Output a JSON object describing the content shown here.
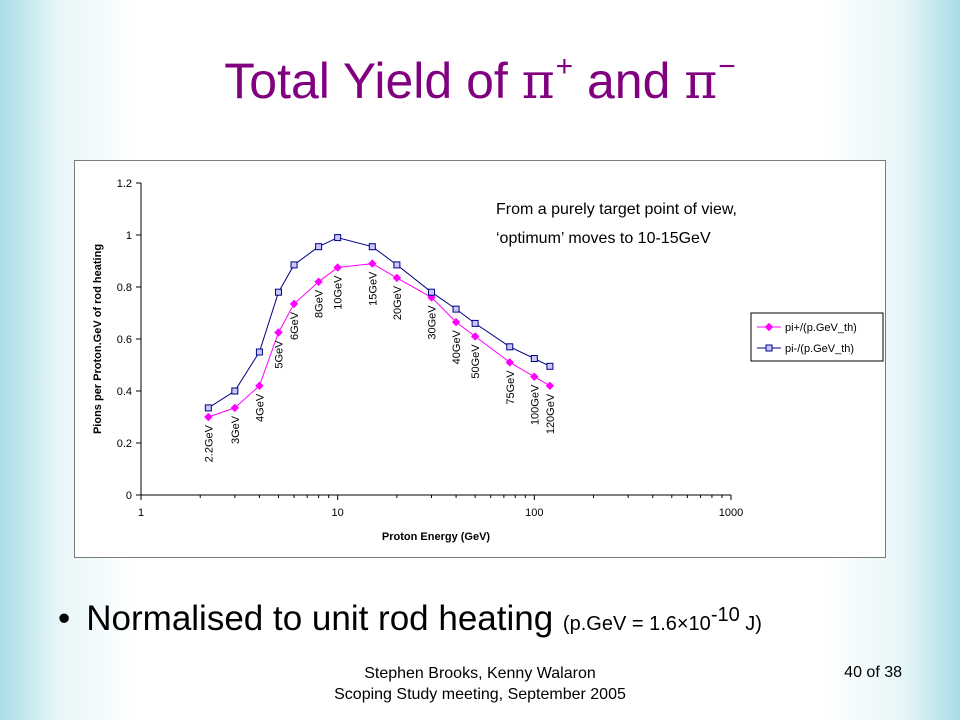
{
  "slide": {
    "title_text": "Total Yield of ",
    "title_pi1": "π",
    "title_sup1": "+",
    "title_and": " and ",
    "title_pi2": "π",
    "title_sup2": "−",
    "bullet_dot": "•",
    "bullet_main": "Normalised to unit rod heating ",
    "bullet_small_pre": "(p.GeV = 1.6×10",
    "bullet_small_exp": "-10",
    "bullet_small_post": " J)",
    "footer_line1": "Stephen Brooks, Kenny Walaron",
    "footer_line2": "Scoping Study meeting, September 2005",
    "slide_number": "40 of 38"
  },
  "chart_data": {
    "type": "line",
    "xscale": "log",
    "xlim": [
      1,
      1000
    ],
    "ylim": [
      0,
      1.2
    ],
    "xticks": [
      "1",
      "10",
      "100",
      "1000"
    ],
    "yticks": [
      "0",
      "0.2",
      "0.4",
      "0.6",
      "0.8",
      "1",
      "1.2"
    ],
    "xlabel": "Proton Energy (GeV)",
    "ylabel": "Pions per Proton.GeV of rod heating",
    "grid": false,
    "legend_position": "right",
    "annotation_line1": "From a purely target point of view,",
    "annotation_line2": "‘optimum’ moves to 10-15GeV",
    "x": [
      2.2,
      3,
      4,
      5,
      6,
      8,
      10,
      15,
      20,
      30,
      40,
      50,
      75,
      100,
      120
    ],
    "point_labels": [
      "2.2GeV",
      "3GeV",
      "4GeV",
      "5GeV",
      "6GeV",
      "8GeV",
      "10GeV",
      "15GeV",
      "20GeV",
      "30GeV",
      "40GeV",
      "50GeV",
      "75GeV",
      "100GeV",
      "120GeV"
    ],
    "series": [
      {
        "name": "pi+/(p.GeV_th)",
        "color": "#ff00ff",
        "marker": "diamond",
        "values": [
          0.3,
          0.335,
          0.42,
          0.625,
          0.735,
          0.82,
          0.875,
          0.89,
          0.835,
          0.76,
          0.665,
          0.61,
          0.51,
          0.455,
          0.42
        ]
      },
      {
        "name": "pi-/(p.GeV_th)",
        "color": "#000080",
        "marker": "square",
        "values": [
          0.335,
          0.4,
          0.55,
          0.78,
          0.885,
          0.955,
          0.99,
          0.955,
          0.885,
          0.78,
          0.715,
          0.66,
          0.57,
          0.525,
          0.495
        ]
      }
    ]
  }
}
